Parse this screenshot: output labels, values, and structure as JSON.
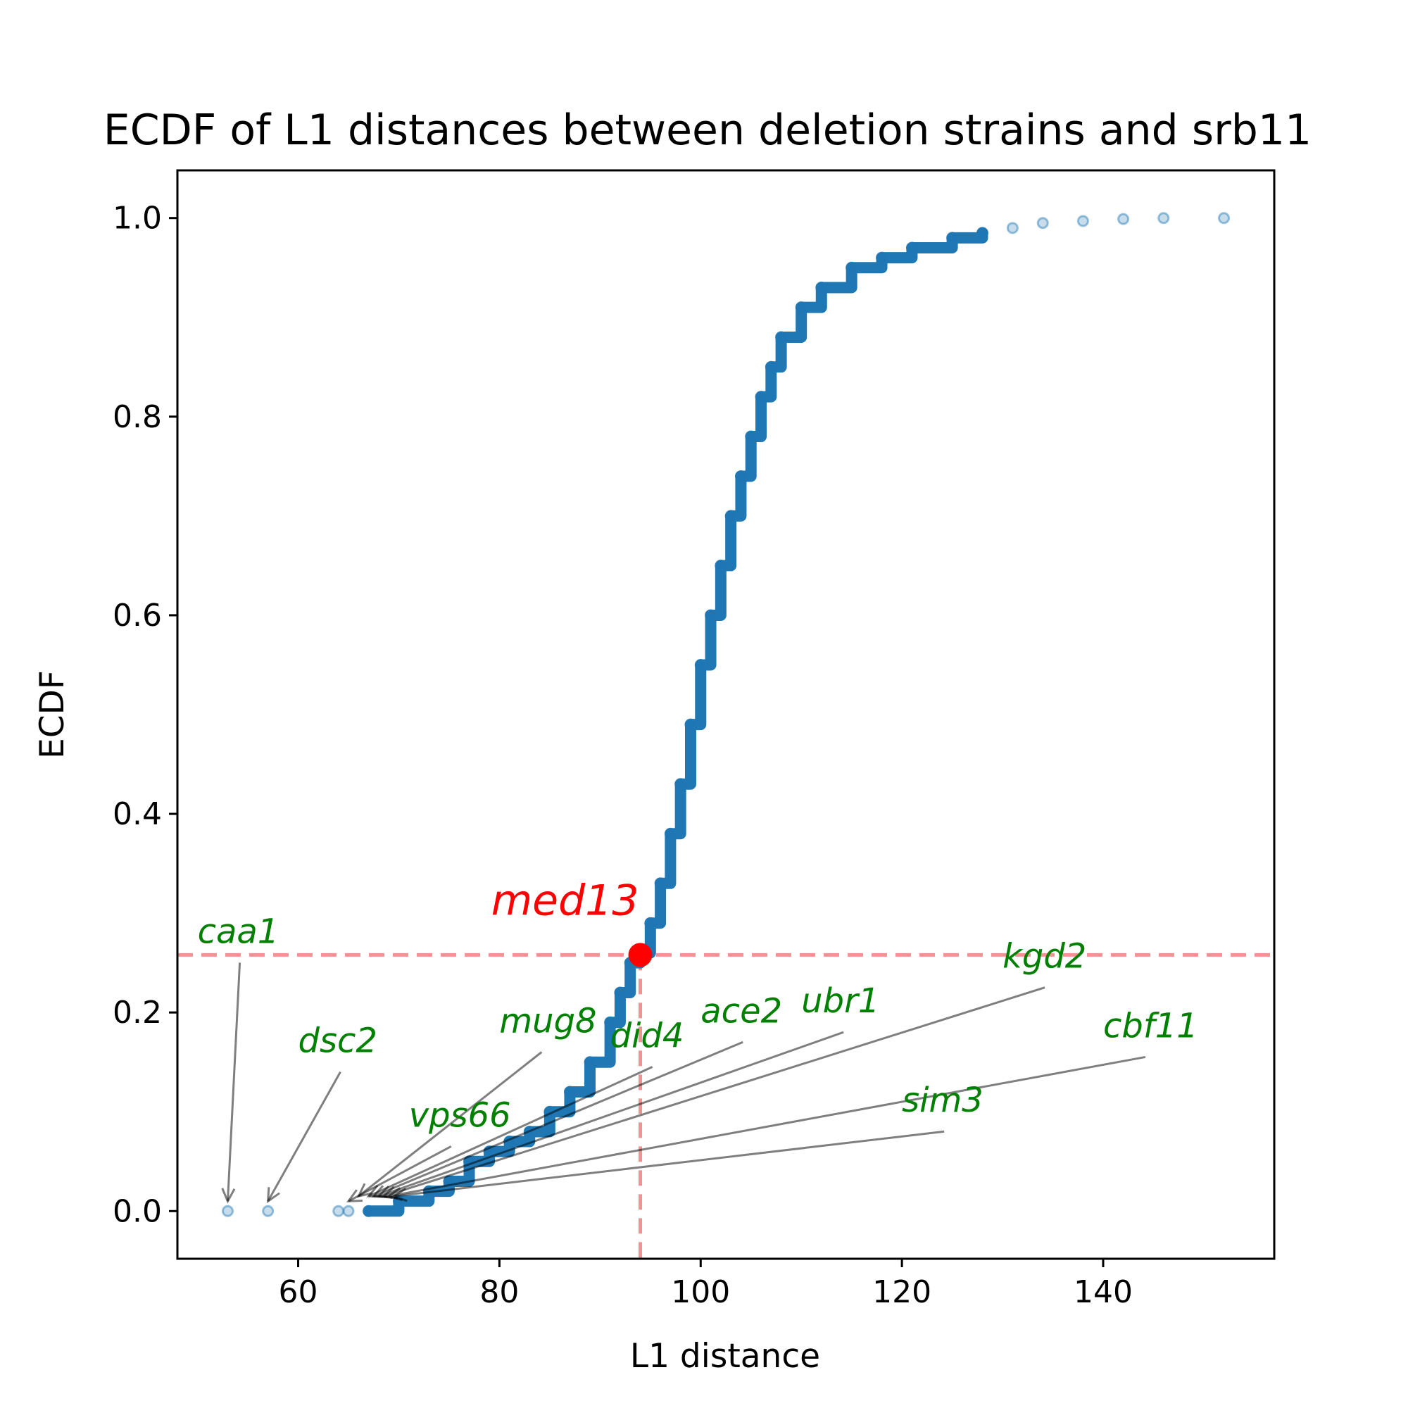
{
  "chart_data": {
    "type": "scatter",
    "title": "ECDF of L1 distances between deletion strains and srb11",
    "xlabel": "L1 distance",
    "ylabel": "ECDF",
    "xlim": [
      48,
      157
    ],
    "ylim": [
      -0.048,
      1.048
    ],
    "xticks": [
      60,
      80,
      100,
      120,
      140
    ],
    "yticks": [
      0.0,
      0.2,
      0.4,
      0.6,
      0.8,
      1.0
    ],
    "ytick_labels": [
      "0.0",
      "0.2",
      "0.4",
      "0.6",
      "0.8",
      "1.0"
    ],
    "grid": false,
    "marker_color": "#1f77b4",
    "ecdf_curve": [
      [
        53,
        0.0
      ],
      [
        57,
        0.0
      ],
      [
        64,
        0.0
      ],
      [
        65,
        0.0
      ],
      [
        67,
        0.0
      ],
      [
        70,
        0.01
      ],
      [
        73,
        0.02
      ],
      [
        75,
        0.03
      ],
      [
        77,
        0.05
      ],
      [
        79,
        0.06
      ],
      [
        81,
        0.07
      ],
      [
        83,
        0.08
      ],
      [
        85,
        0.1
      ],
      [
        87,
        0.12
      ],
      [
        89,
        0.15
      ],
      [
        91,
        0.19
      ],
      [
        92,
        0.22
      ],
      [
        93,
        0.25
      ],
      [
        94,
        0.26
      ],
      [
        95,
        0.29
      ],
      [
        96,
        0.33
      ],
      [
        97,
        0.38
      ],
      [
        98,
        0.43
      ],
      [
        99,
        0.49
      ],
      [
        100,
        0.55
      ],
      [
        101,
        0.6
      ],
      [
        102,
        0.65
      ],
      [
        103,
        0.7
      ],
      [
        104,
        0.74
      ],
      [
        105,
        0.78
      ],
      [
        106,
        0.82
      ],
      [
        107,
        0.85
      ],
      [
        108,
        0.88
      ],
      [
        110,
        0.91
      ],
      [
        112,
        0.93
      ],
      [
        115,
        0.95
      ],
      [
        118,
        0.96
      ],
      [
        121,
        0.97
      ],
      [
        125,
        0.98
      ],
      [
        128,
        0.985
      ],
      [
        131,
        0.99
      ],
      [
        134,
        0.995
      ],
      [
        138,
        0.997
      ],
      [
        142,
        0.999
      ],
      [
        146,
        1.0
      ],
      [
        152,
        1.0
      ]
    ],
    "highlight": {
      "gene": "med13",
      "x": 94,
      "y": 0.258,
      "color": "#ff0000",
      "line_color": "#f08080"
    },
    "annotations": [
      {
        "label": "caa1",
        "x": 53,
        "y": 0.0,
        "text_x": 50,
        "text_y": 0.27
      },
      {
        "label": "dsc2",
        "x": 57,
        "y": 0.0,
        "text_x": 60,
        "text_y": 0.16
      },
      {
        "label": "vps66",
        "x": 65,
        "y": 0.0,
        "text_x": 71,
        "text_y": 0.085
      },
      {
        "label": "mug8",
        "x": 66,
        "y": 0.005,
        "text_x": 80,
        "text_y": 0.18
      },
      {
        "label": "did4",
        "x": 67,
        "y": 0.005,
        "text_x": 91,
        "text_y": 0.165
      },
      {
        "label": "ace2",
        "x": 67.5,
        "y": 0.005,
        "text_x": 100,
        "text_y": 0.19
      },
      {
        "label": "ubr1",
        "x": 68,
        "y": 0.005,
        "text_x": 110,
        "text_y": 0.2
      },
      {
        "label": "kgd2",
        "x": 68.5,
        "y": 0.005,
        "text_x": 130,
        "text_y": 0.245
      },
      {
        "label": "cbf11",
        "x": 69,
        "y": 0.005,
        "text_x": 140,
        "text_y": 0.175
      },
      {
        "label": "sim3",
        "x": 69.5,
        "y": 0.005,
        "text_x": 120,
        "text_y": 0.1
      }
    ],
    "annotation_color": "#008000"
  }
}
